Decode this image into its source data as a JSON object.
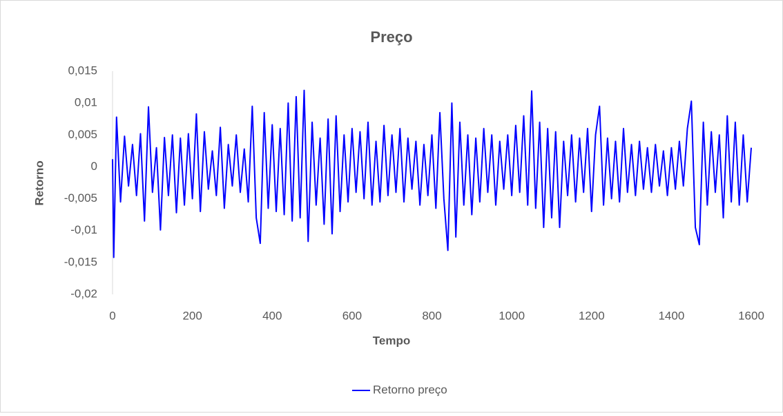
{
  "chart_data": {
    "type": "line",
    "title": "Preço",
    "x_label": "Tempo",
    "y_label": "Retorno",
    "x": [
      0,
      3,
      10,
      20,
      30,
      40,
      50,
      60,
      70,
      80,
      90,
      100,
      110,
      120,
      130,
      140,
      150,
      160,
      170,
      180,
      190,
      200,
      210,
      220,
      230,
      240,
      250,
      260,
      270,
      280,
      290,
      300,
      310,
      320,
      330,
      340,
      350,
      360,
      370,
      380,
      390,
      400,
      410,
      420,
      430,
      440,
      450,
      460,
      470,
      480,
      490,
      500,
      510,
      520,
      530,
      540,
      550,
      560,
      570,
      580,
      590,
      600,
      610,
      620,
      630,
      640,
      650,
      660,
      670,
      680,
      690,
      700,
      710,
      720,
      730,
      740,
      750,
      760,
      770,
      780,
      790,
      800,
      810,
      820,
      830,
      840,
      850,
      860,
      870,
      880,
      890,
      900,
      910,
      920,
      930,
      940,
      950,
      960,
      970,
      980,
      990,
      1000,
      1010,
      1020,
      1030,
      1040,
      1050,
      1060,
      1070,
      1080,
      1090,
      1100,
      1110,
      1120,
      1130,
      1140,
      1150,
      1160,
      1170,
      1180,
      1190,
      1200,
      1210,
      1220,
      1230,
      1240,
      1250,
      1260,
      1270,
      1280,
      1290,
      1300,
      1310,
      1320,
      1330,
      1340,
      1350,
      1360,
      1370,
      1380,
      1390,
      1400,
      1410,
      1420,
      1430,
      1440,
      1450,
      1460,
      1470,
      1480,
      1490,
      1500,
      1510,
      1520,
      1530,
      1540,
      1550,
      1560,
      1570,
      1580,
      1590,
      1600
    ],
    "series": [
      {
        "name": "Retorno preço",
        "color": "#0000ff",
        "values": [
          0.0012,
          -0.0142,
          0.0078,
          -0.0055,
          0.0048,
          -0.003,
          0.0035,
          -0.0045,
          0.0052,
          -0.0085,
          0.0094,
          -0.004,
          0.003,
          -0.0099,
          0.0046,
          -0.0045,
          0.005,
          -0.0072,
          0.0045,
          -0.006,
          0.0052,
          -0.005,
          0.0083,
          -0.007,
          0.0055,
          -0.0035,
          0.0025,
          -0.0045,
          0.0062,
          -0.0065,
          0.0035,
          -0.003,
          0.005,
          -0.004,
          0.0028,
          -0.0055,
          0.0095,
          -0.008,
          -0.012,
          0.0085,
          -0.0065,
          0.0066,
          -0.007,
          0.006,
          -0.0075,
          0.01,
          -0.0085,
          0.011,
          -0.008,
          0.012,
          -0.0117,
          0.007,
          -0.006,
          0.0045,
          -0.009,
          0.0075,
          -0.0105,
          0.008,
          -0.007,
          0.005,
          -0.0055,
          0.006,
          -0.004,
          0.0055,
          -0.005,
          0.007,
          -0.006,
          0.004,
          -0.0055,
          0.0065,
          -0.0045,
          0.005,
          -0.004,
          0.006,
          -0.0055,
          0.0045,
          -0.0035,
          0.004,
          -0.006,
          0.0035,
          -0.0045,
          0.005,
          -0.0065,
          0.0085,
          -0.005,
          -0.0131,
          0.01,
          -0.011,
          0.007,
          -0.006,
          0.005,
          -0.0075,
          0.0045,
          -0.0055,
          0.006,
          -0.004,
          0.005,
          -0.006,
          0.004,
          -0.0035,
          0.005,
          -0.0045,
          0.0065,
          -0.004,
          0.008,
          -0.006,
          0.0119,
          -0.0065,
          0.007,
          -0.0095,
          0.006,
          -0.008,
          0.0055,
          -0.0095,
          0.004,
          -0.0045,
          0.005,
          -0.0055,
          0.0045,
          -0.004,
          0.006,
          -0.007,
          0.005,
          0.0095,
          -0.006,
          0.0045,
          -0.005,
          0.004,
          -0.0055,
          0.006,
          -0.004,
          0.0035,
          -0.0045,
          0.004,
          -0.0035,
          0.003,
          -0.004,
          0.0035,
          -0.003,
          0.0025,
          -0.0045,
          0.003,
          -0.0035,
          0.004,
          -0.003,
          0.006,
          0.0103,
          -0.0095,
          -0.0122,
          0.007,
          -0.006,
          0.0055,
          -0.004,
          0.005,
          -0.008,
          0.008,
          -0.0055,
          0.007,
          -0.006,
          0.005,
          -0.0055,
          0.003
        ]
      }
    ],
    "xlim": [
      0,
      1600
    ],
    "xticks": [
      0,
      200,
      400,
      600,
      800,
      1000,
      1200,
      1400,
      1600
    ],
    "ylim": [
      -0.02,
      0.015
    ],
    "yticks": [
      {
        "value": -0.02,
        "label": "-0,02"
      },
      {
        "value": -0.015,
        "label": "-0,015"
      },
      {
        "value": -0.01,
        "label": "-0,01"
      },
      {
        "value": -0.005,
        "label": "-0,005"
      },
      0,
      {
        "value": 0.005,
        "label": "0,005"
      },
      {
        "value": 0.01,
        "label": "0,01"
      },
      {
        "value": 0.015,
        "label": "0,015"
      }
    ],
    "legend": "bottom"
  }
}
